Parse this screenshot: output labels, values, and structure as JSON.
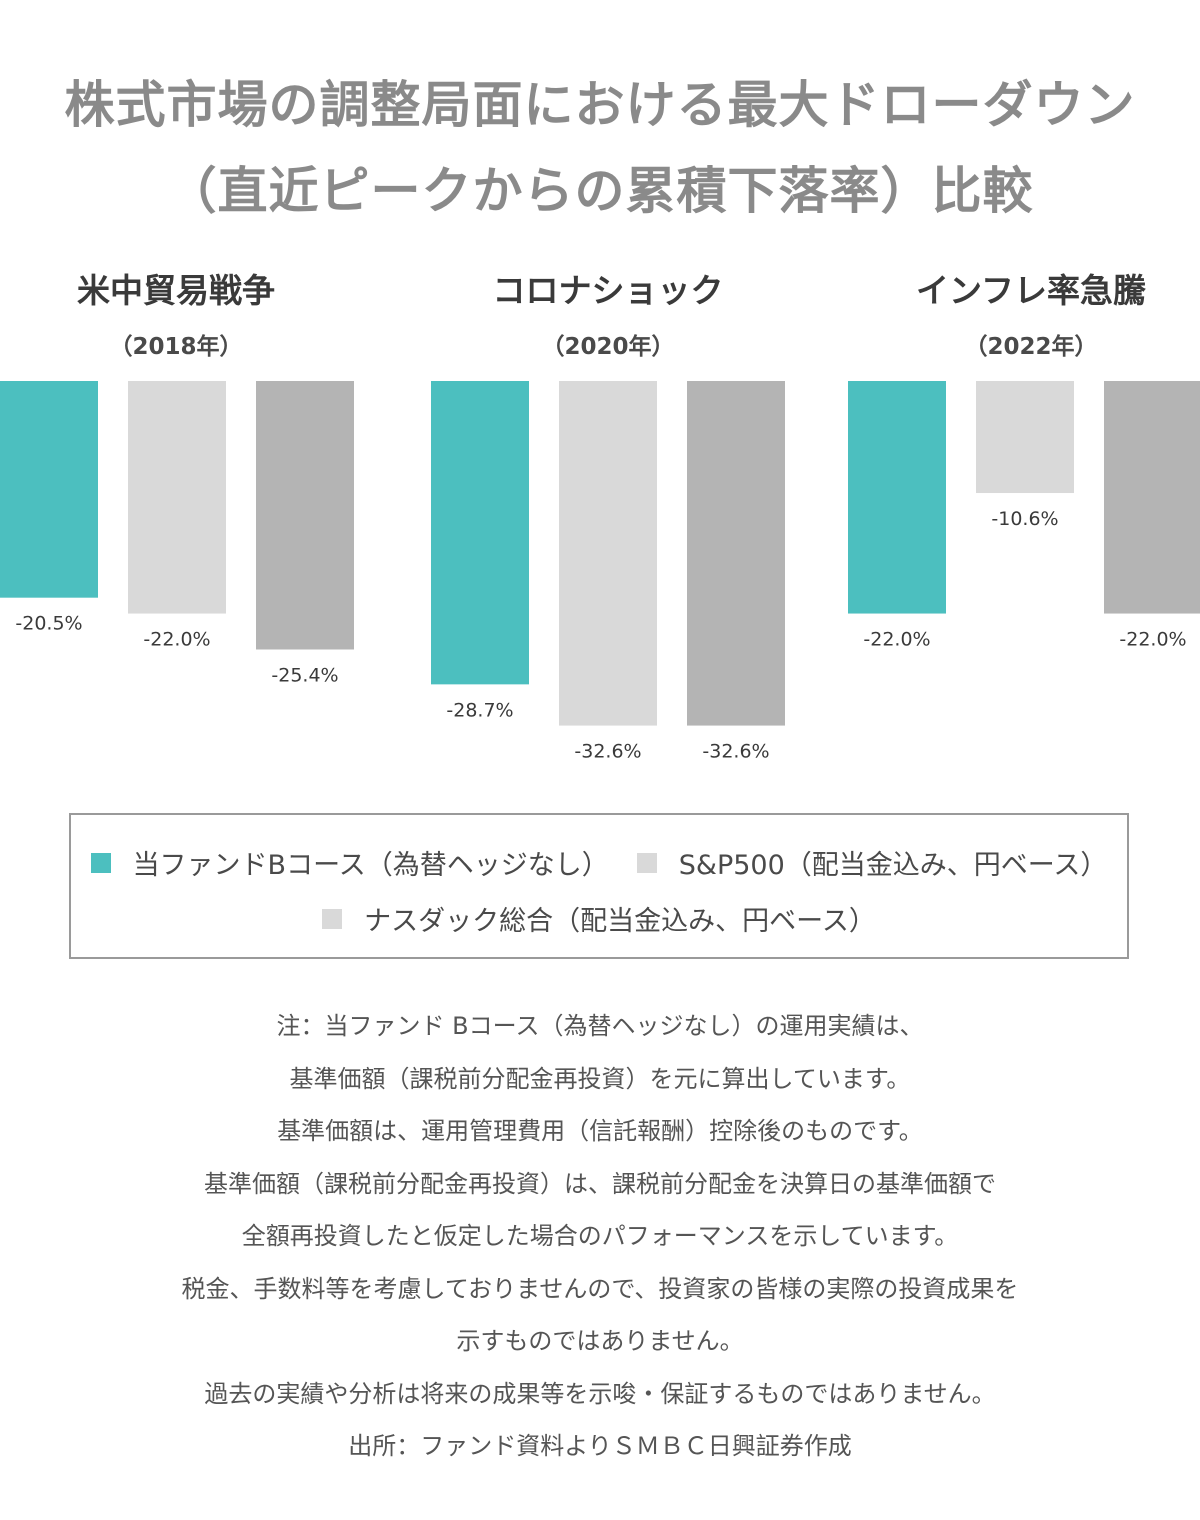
{
  "title_lines": [
    "株式市場の調整局面における最大ドローダウン",
    "（直近ピークからの累積下落率）比較"
  ],
  "colors": {
    "fund": "#4cbfbf",
    "sp500": "#d9d9d9",
    "nasdaq": "#b4b4b4",
    "legend_nasdaq_swatch": "#d9d9d9"
  },
  "chart_data": {
    "type": "bar",
    "title": "株式市場の調整局面における最大ドローダウン（直近ピークからの累積下落率）比較",
    "unit": "%",
    "groups": [
      {
        "name": "米中貿易戦争",
        "year": "（2018年）"
      },
      {
        "name": "コロナショック",
        "year": "（2020年）"
      },
      {
        "name": "インフレ率急騰",
        "year": "（2022年）"
      }
    ],
    "series": [
      {
        "name": "当ファンドBコース（為替ヘッジなし）",
        "values": [
          -20.5,
          -28.7,
          -22.0
        ],
        "labels": [
          "-20.5%",
          "-28.7%",
          "-22.0%"
        ]
      },
      {
        "name": "S&P500（配当金込み、円ベース）",
        "values": [
          -22.0,
          -32.6,
          -10.6
        ],
        "labels": [
          "-22.0%",
          "-32.6%",
          "-10.6%"
        ]
      },
      {
        "name": "ナスダック総合（配当金込み、円ベース）",
        "values": [
          -25.4,
          -32.6,
          -22.0
        ],
        "labels": [
          "-25.4%",
          "-32.6%",
          "-22.0%"
        ]
      }
    ],
    "ylim": [
      -35,
      0
    ],
    "grid": false,
    "legend": "bottom"
  },
  "legend": {
    "items": [
      {
        "label": "当ファンドBコース（為替ヘッジなし）"
      },
      {
        "label": "S&P500（配当金込み、円ベース）"
      },
      {
        "label": "ナスダック総合（配当金込み、円ベース）"
      }
    ]
  },
  "notes": [
    "注：当ファンド Bコース（為替ヘッジなし）の運用実績は、",
    "基準価額（課税前分配金再投資）を元に算出しています。",
    "基準価額は、運用管理費用（信託報酬）控除後のものです。",
    "基準価額（課税前分配金再投資）は、課税前分配金を決算日の基準価額で",
    "全額再投資したと仮定した場合のパフォーマンスを示しています。",
    "税金、手数料等を考慮しておりませんので、投資家の皆様の実際の投資成果を",
    "示すものではありません。",
    "過去の実績や分析は将来の成果等を示唆・保証するものではありません。",
    "出所：ファンド資料よりＳＭＢＣ日興証券作成"
  ]
}
